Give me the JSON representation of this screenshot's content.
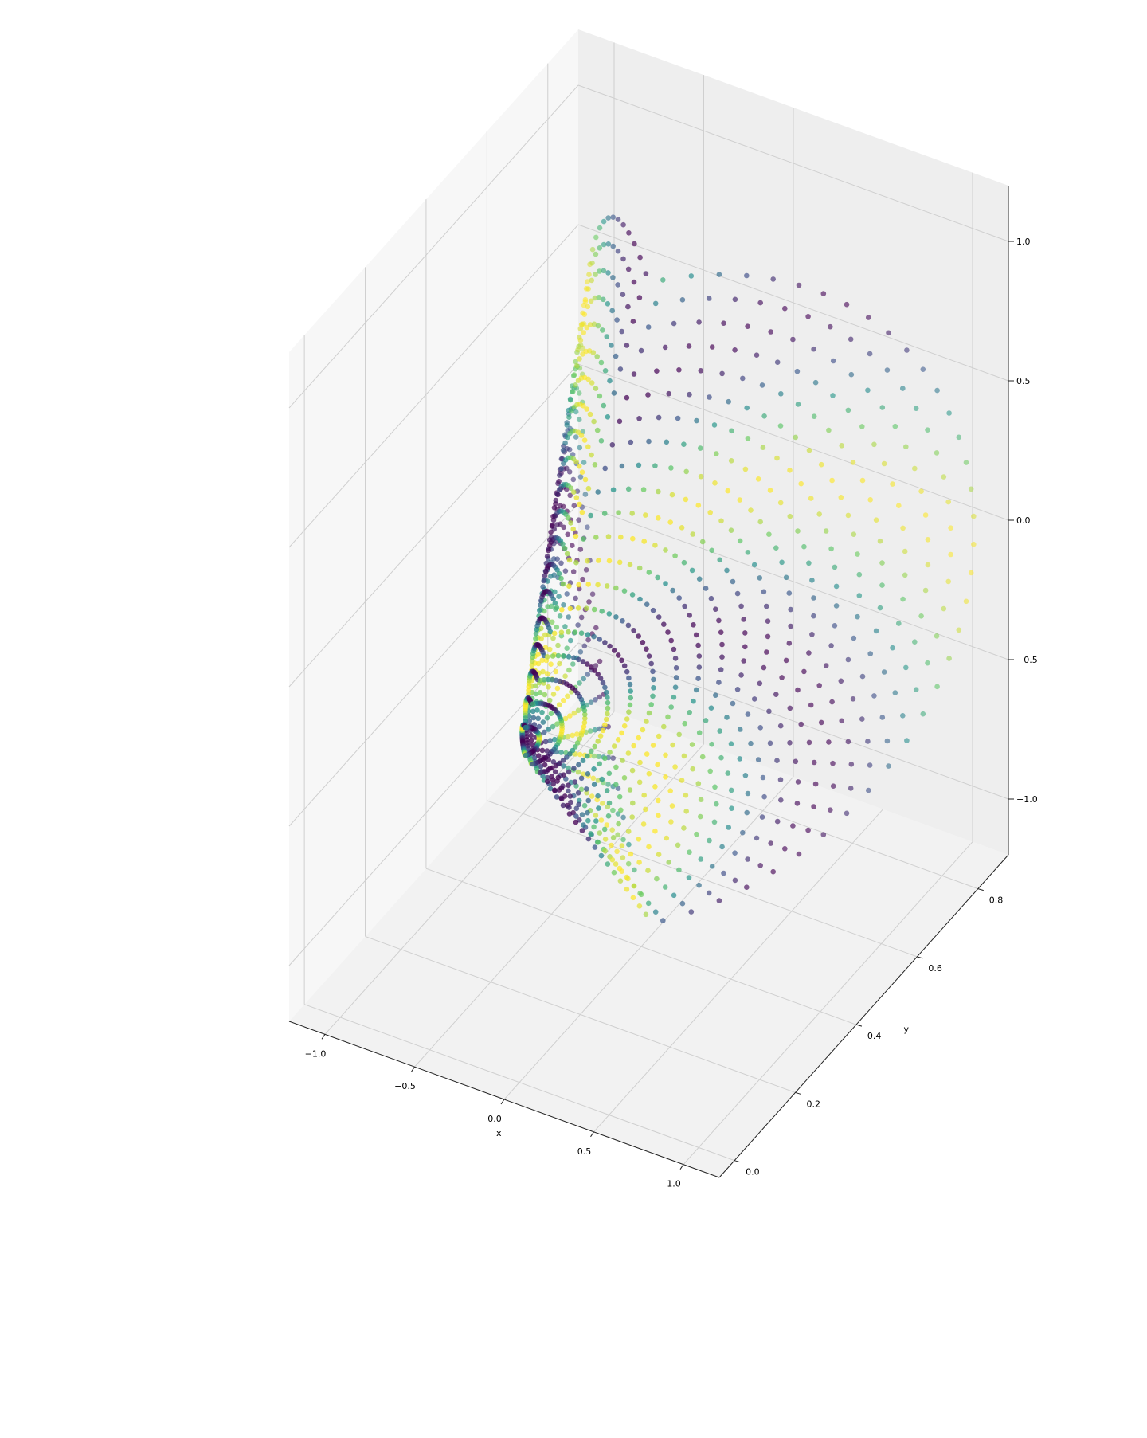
{
  "chart_data": {
    "type": "scatter",
    "projection": "3d",
    "title": "",
    "xlabel": "x",
    "ylabel": "y",
    "zlabel": "",
    "xlim": [
      -1.2,
      1.2
    ],
    "ylim": [
      -0.05,
      0.9
    ],
    "zlim": [
      -1.2,
      1.2
    ],
    "x_ticks": [
      -1.0,
      -0.5,
      0.0,
      0.5,
      1.0
    ],
    "x_tick_labels": [
      "−1.0",
      "−0.5",
      "0.0",
      "0.5",
      "1.0"
    ],
    "y_ticks": [
      0.0,
      0.2,
      0.4,
      0.6,
      0.8
    ],
    "y_tick_labels": [
      "0.0",
      "0.2",
      "0.4",
      "0.6",
      "0.8"
    ],
    "z_ticks": [
      -1.0,
      -0.5,
      0.0,
      0.5,
      1.0
    ],
    "z_tick_labels": [
      "−1.0",
      "−0.5",
      "0.0",
      "0.5",
      "1.0"
    ],
    "grid": true,
    "colormap": "viridis",
    "colormap_stops": [
      "#440154",
      "#3b528b",
      "#21918c",
      "#5ec962",
      "#fde725"
    ],
    "surface": {
      "shape": "folded half-cylinder fan (points arranged on rays from a central axis)",
      "radius_range": [
        0.05,
        1.15
      ],
      "rays": 36,
      "points_per_ray": 20,
      "y_range": [
        0.0,
        0.85
      ]
    }
  }
}
